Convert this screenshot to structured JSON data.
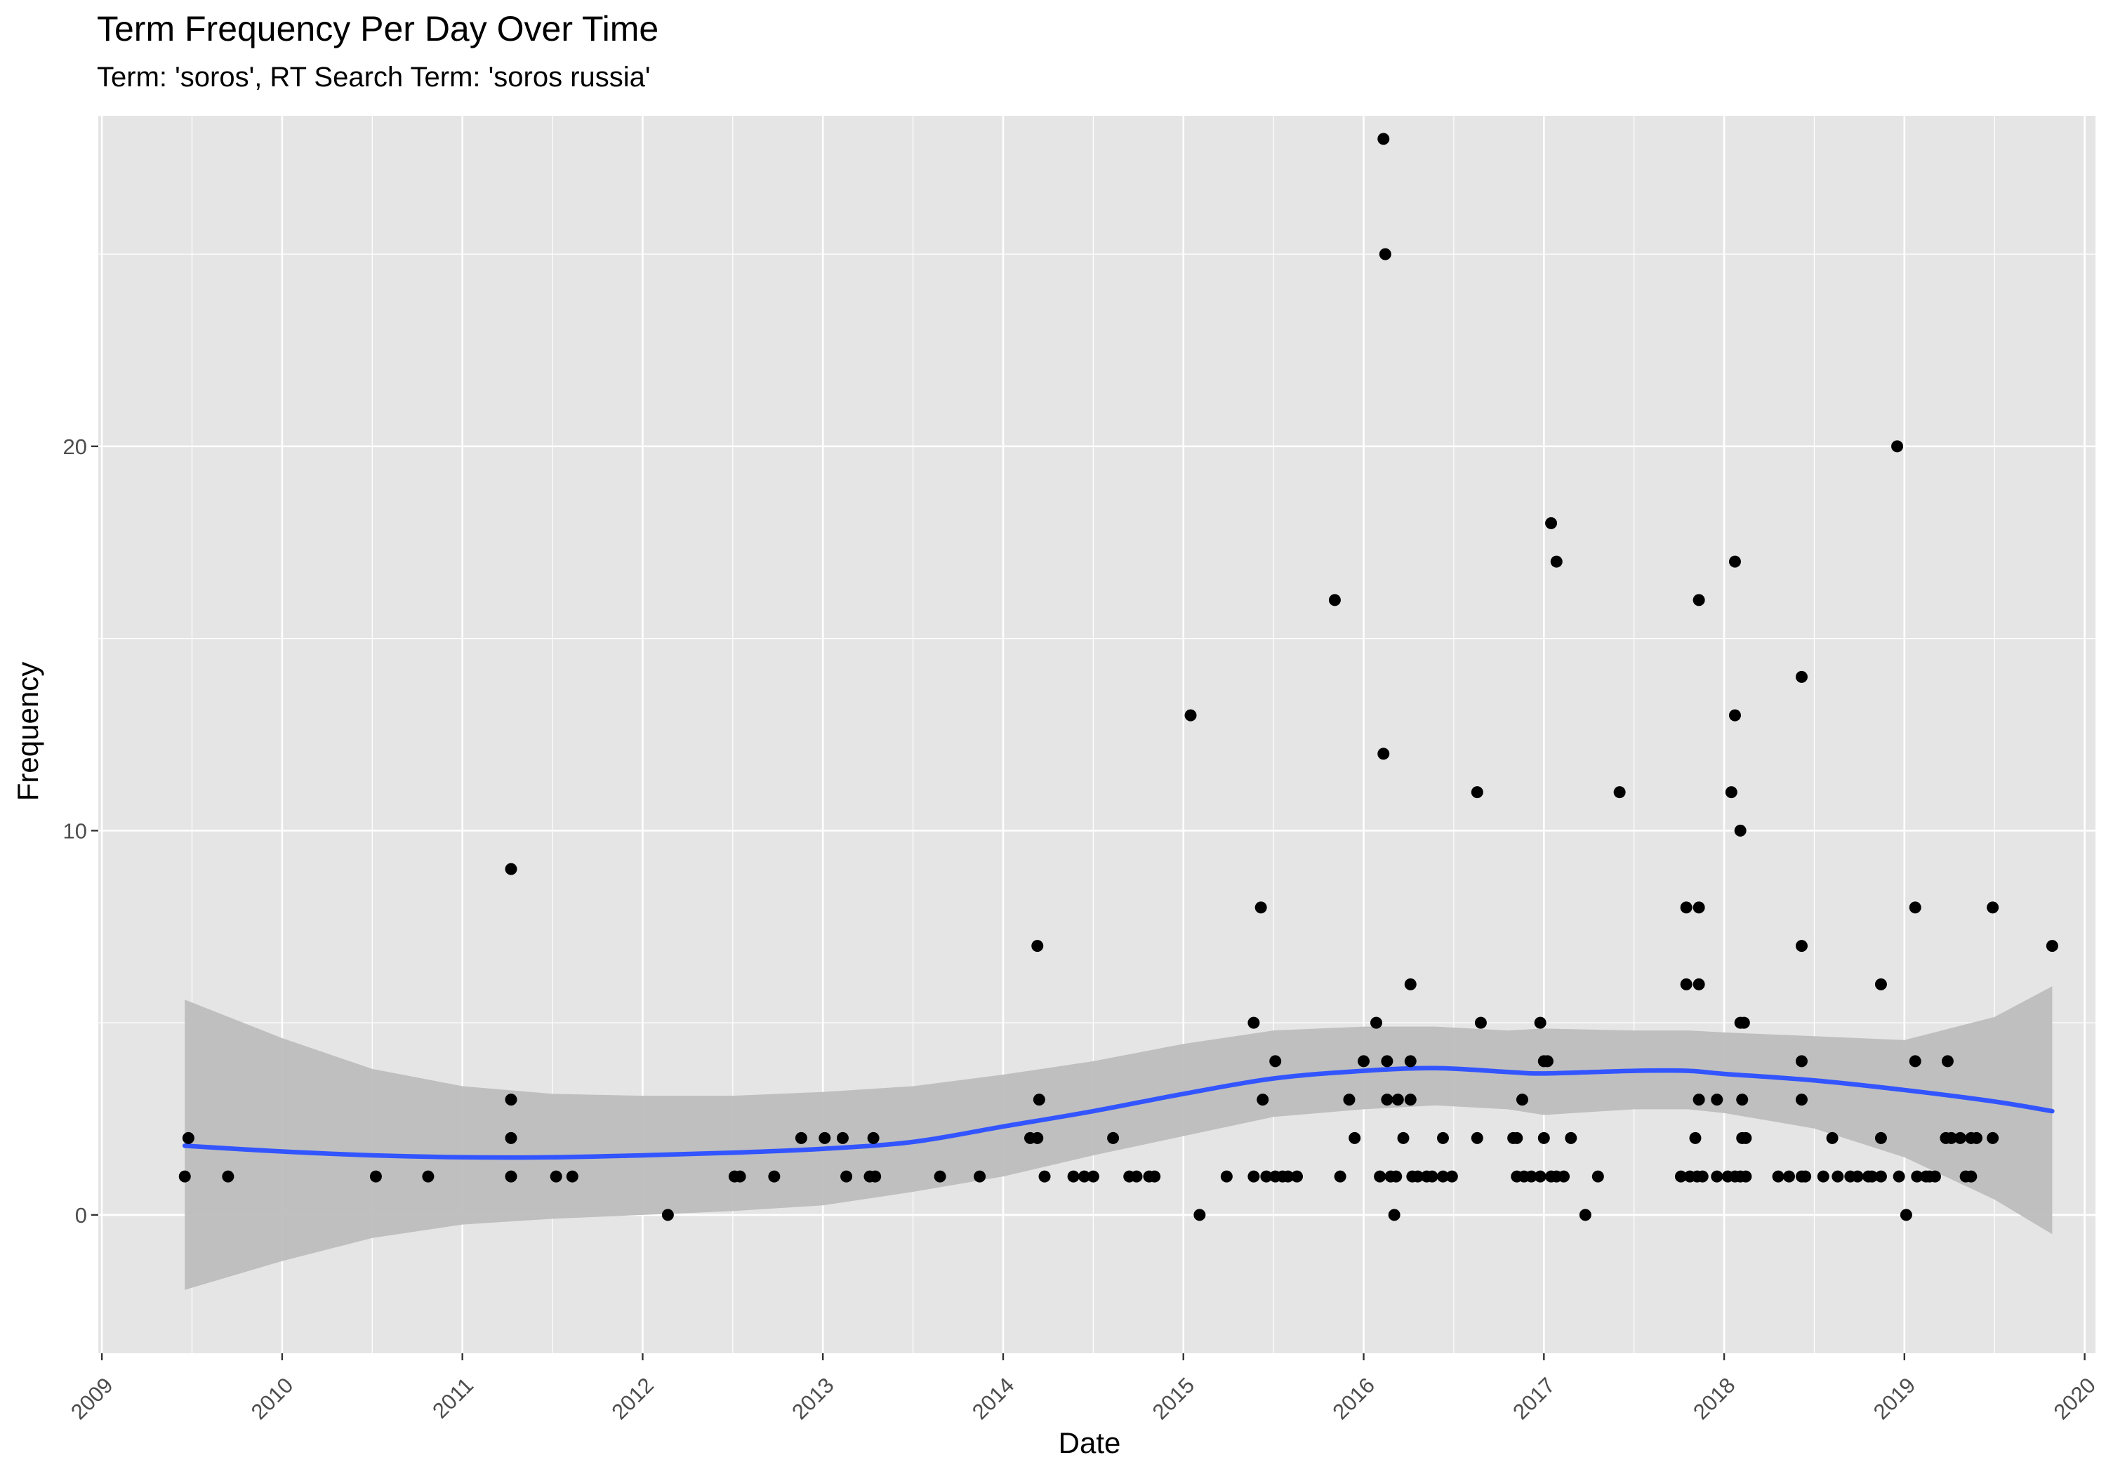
{
  "chart_data": {
    "type": "scatter",
    "title": "Term Frequency Per Day Over Time",
    "subtitle": "Term: 'soros', RT Search Term: 'soros russia'",
    "xlabel": "Date",
    "ylabel": "Frequency",
    "x_ticks": [
      "2009",
      "2010",
      "2011",
      "2012",
      "2013",
      "2014",
      "2015",
      "2016",
      "2017",
      "2018",
      "2019",
      "2020"
    ],
    "y_ticks": [
      "0",
      "10",
      "20"
    ],
    "xlim": [
      2008.98,
      2020.06
    ],
    "ylim": [
      -3.6,
      28.6
    ],
    "grid": true,
    "background_color": "#e5e5e5",
    "grid_color": "#ffffff",
    "point_color": "#000000",
    "smooth_color": "#3355ff",
    "ribbon_color": "#bdbdbd",
    "points": [
      {
        "x": 2009.46,
        "y": 1
      },
      {
        "x": 2009.48,
        "y": 2
      },
      {
        "x": 2009.7,
        "y": 1
      },
      {
        "x": 2010.52,
        "y": 1
      },
      {
        "x": 2010.81,
        "y": 1
      },
      {
        "x": 2011.27,
        "y": 9
      },
      {
        "x": 2011.27,
        "y": 3
      },
      {
        "x": 2011.27,
        "y": 2
      },
      {
        "x": 2011.27,
        "y": 1
      },
      {
        "x": 2011.52,
        "y": 1
      },
      {
        "x": 2011.61,
        "y": 1
      },
      {
        "x": 2012.14,
        "y": 0
      },
      {
        "x": 2012.51,
        "y": 1
      },
      {
        "x": 2012.54,
        "y": 1
      },
      {
        "x": 2012.73,
        "y": 1
      },
      {
        "x": 2012.88,
        "y": 2
      },
      {
        "x": 2013.01,
        "y": 2
      },
      {
        "x": 2013.11,
        "y": 2
      },
      {
        "x": 2013.13,
        "y": 1
      },
      {
        "x": 2013.26,
        "y": 1
      },
      {
        "x": 2013.28,
        "y": 2
      },
      {
        "x": 2013.29,
        "y": 1
      },
      {
        "x": 2013.65,
        "y": 1
      },
      {
        "x": 2013.87,
        "y": 1
      },
      {
        "x": 2014.15,
        "y": 2
      },
      {
        "x": 2014.19,
        "y": 2
      },
      {
        "x": 2014.19,
        "y": 7
      },
      {
        "x": 2014.2,
        "y": 3
      },
      {
        "x": 2014.23,
        "y": 1
      },
      {
        "x": 2014.39,
        "y": 1
      },
      {
        "x": 2014.45,
        "y": 1
      },
      {
        "x": 2014.5,
        "y": 1
      },
      {
        "x": 2014.61,
        "y": 2
      },
      {
        "x": 2014.7,
        "y": 1
      },
      {
        "x": 2014.74,
        "y": 1
      },
      {
        "x": 2014.81,
        "y": 1
      },
      {
        "x": 2014.84,
        "y": 1
      },
      {
        "x": 2015.04,
        "y": 13
      },
      {
        "x": 2015.09,
        "y": 0
      },
      {
        "x": 2015.24,
        "y": 1
      },
      {
        "x": 2015.39,
        "y": 5
      },
      {
        "x": 2015.39,
        "y": 1
      },
      {
        "x": 2015.43,
        "y": 8
      },
      {
        "x": 2015.44,
        "y": 3
      },
      {
        "x": 2015.46,
        "y": 1
      },
      {
        "x": 2015.51,
        "y": 4
      },
      {
        "x": 2015.51,
        "y": 1
      },
      {
        "x": 2015.55,
        "y": 1
      },
      {
        "x": 2015.58,
        "y": 1
      },
      {
        "x": 2015.63,
        "y": 1
      },
      {
        "x": 2015.84,
        "y": 16
      },
      {
        "x": 2015.87,
        "y": 1
      },
      {
        "x": 2015.92,
        "y": 3
      },
      {
        "x": 2015.95,
        "y": 2
      },
      {
        "x": 2016.0,
        "y": 4
      },
      {
        "x": 2016.07,
        "y": 5
      },
      {
        "x": 2016.09,
        "y": 1
      },
      {
        "x": 2016.11,
        "y": 12
      },
      {
        "x": 2016.11,
        "y": 28
      },
      {
        "x": 2016.12,
        "y": 25
      },
      {
        "x": 2016.13,
        "y": 4
      },
      {
        "x": 2016.13,
        "y": 3
      },
      {
        "x": 2016.15,
        "y": 1
      },
      {
        "x": 2016.17,
        "y": 0
      },
      {
        "x": 2016.18,
        "y": 1
      },
      {
        "x": 2016.19,
        "y": 3
      },
      {
        "x": 2016.22,
        "y": 2
      },
      {
        "x": 2016.26,
        "y": 6
      },
      {
        "x": 2016.26,
        "y": 4
      },
      {
        "x": 2016.26,
        "y": 3
      },
      {
        "x": 2016.27,
        "y": 1
      },
      {
        "x": 2016.3,
        "y": 1
      },
      {
        "x": 2016.35,
        "y": 1
      },
      {
        "x": 2016.38,
        "y": 1
      },
      {
        "x": 2016.44,
        "y": 2
      },
      {
        "x": 2016.44,
        "y": 1
      },
      {
        "x": 2016.49,
        "y": 1
      },
      {
        "x": 2016.63,
        "y": 11
      },
      {
        "x": 2016.63,
        "y": 2
      },
      {
        "x": 2016.65,
        "y": 5
      },
      {
        "x": 2016.83,
        "y": 2
      },
      {
        "x": 2016.85,
        "y": 2
      },
      {
        "x": 2016.85,
        "y": 1
      },
      {
        "x": 2016.88,
        "y": 3
      },
      {
        "x": 2016.89,
        "y": 1
      },
      {
        "x": 2016.93,
        "y": 1
      },
      {
        "x": 2016.98,
        "y": 5
      },
      {
        "x": 2016.98,
        "y": 1
      },
      {
        "x": 2017.0,
        "y": 4
      },
      {
        "x": 2017.0,
        "y": 2
      },
      {
        "x": 2017.02,
        "y": 4
      },
      {
        "x": 2017.04,
        "y": 18
      },
      {
        "x": 2017.04,
        "y": 1
      },
      {
        "x": 2017.07,
        "y": 17
      },
      {
        "x": 2017.07,
        "y": 1
      },
      {
        "x": 2017.11,
        "y": 1
      },
      {
        "x": 2017.15,
        "y": 2
      },
      {
        "x": 2017.23,
        "y": 0
      },
      {
        "x": 2017.3,
        "y": 1
      },
      {
        "x": 2017.42,
        "y": 11
      },
      {
        "x": 2017.76,
        "y": 1
      },
      {
        "x": 2017.79,
        "y": 8
      },
      {
        "x": 2017.79,
        "y": 6
      },
      {
        "x": 2017.81,
        "y": 1
      },
      {
        "x": 2017.84,
        "y": 2
      },
      {
        "x": 2017.85,
        "y": 1
      },
      {
        "x": 2017.86,
        "y": 8
      },
      {
        "x": 2017.86,
        "y": 6
      },
      {
        "x": 2017.86,
        "y": 16
      },
      {
        "x": 2017.86,
        "y": 3
      },
      {
        "x": 2017.88,
        "y": 1
      },
      {
        "x": 2017.96,
        "y": 3
      },
      {
        "x": 2017.96,
        "y": 1
      },
      {
        "x": 2018.02,
        "y": 1
      },
      {
        "x": 2018.04,
        "y": 11
      },
      {
        "x": 2018.06,
        "y": 17
      },
      {
        "x": 2018.06,
        "y": 13
      },
      {
        "x": 2018.06,
        "y": 1
      },
      {
        "x": 2018.09,
        "y": 10
      },
      {
        "x": 2018.09,
        "y": 5
      },
      {
        "x": 2018.09,
        "y": 1
      },
      {
        "x": 2018.1,
        "y": 3
      },
      {
        "x": 2018.1,
        "y": 2
      },
      {
        "x": 2018.11,
        "y": 5
      },
      {
        "x": 2018.12,
        "y": 2
      },
      {
        "x": 2018.12,
        "y": 1
      },
      {
        "x": 2018.3,
        "y": 1
      },
      {
        "x": 2018.36,
        "y": 1
      },
      {
        "x": 2018.43,
        "y": 14
      },
      {
        "x": 2018.43,
        "y": 7
      },
      {
        "x": 2018.43,
        "y": 4
      },
      {
        "x": 2018.43,
        "y": 3
      },
      {
        "x": 2018.43,
        "y": 1
      },
      {
        "x": 2018.45,
        "y": 1
      },
      {
        "x": 2018.55,
        "y": 1
      },
      {
        "x": 2018.6,
        "y": 2
      },
      {
        "x": 2018.63,
        "y": 1
      },
      {
        "x": 2018.7,
        "y": 1
      },
      {
        "x": 2018.74,
        "y": 1
      },
      {
        "x": 2018.8,
        "y": 1
      },
      {
        "x": 2018.82,
        "y": 1
      },
      {
        "x": 2018.87,
        "y": 6
      },
      {
        "x": 2018.87,
        "y": 2
      },
      {
        "x": 2018.87,
        "y": 1
      },
      {
        "x": 2018.96,
        "y": 20
      },
      {
        "x": 2018.97,
        "y": 1
      },
      {
        "x": 2019.01,
        "y": 0
      },
      {
        "x": 2019.06,
        "y": 8
      },
      {
        "x": 2019.06,
        "y": 4
      },
      {
        "x": 2019.07,
        "y": 1
      },
      {
        "x": 2019.12,
        "y": 1
      },
      {
        "x": 2019.14,
        "y": 1
      },
      {
        "x": 2019.17,
        "y": 1
      },
      {
        "x": 2019.23,
        "y": 2
      },
      {
        "x": 2019.24,
        "y": 4
      },
      {
        "x": 2019.26,
        "y": 2
      },
      {
        "x": 2019.31,
        "y": 2
      },
      {
        "x": 2019.34,
        "y": 1
      },
      {
        "x": 2019.37,
        "y": 2
      },
      {
        "x": 2019.37,
        "y": 1
      },
      {
        "x": 2019.4,
        "y": 2
      },
      {
        "x": 2019.49,
        "y": 8
      },
      {
        "x": 2019.49,
        "y": 2
      },
      {
        "x": 2019.82,
        "y": 7
      }
    ],
    "smooth": {
      "x": [
        2009.46,
        2010.0,
        2010.5,
        2011.0,
        2011.5,
        2012.0,
        2012.5,
        2013.0,
        2013.5,
        2014.0,
        2014.5,
        2015.0,
        2015.5,
        2016.0,
        2016.4,
        2016.8,
        2017.0,
        2017.5,
        2017.8,
        2018.0,
        2018.5,
        2019.0,
        2019.5,
        2019.82
      ],
      "y": [
        1.8,
        1.65,
        1.55,
        1.5,
        1.5,
        1.55,
        1.62,
        1.72,
        1.9,
        2.3,
        2.7,
        3.15,
        3.55,
        3.75,
        3.82,
        3.72,
        3.68,
        3.75,
        3.75,
        3.67,
        3.5,
        3.25,
        2.95,
        2.7
      ],
      "lower": [
        -1.95,
        -1.2,
        -0.6,
        -0.25,
        -0.1,
        0.0,
        0.1,
        0.25,
        0.6,
        1.0,
        1.55,
        2.05,
        2.55,
        2.75,
        2.85,
        2.75,
        2.6,
        2.75,
        2.75,
        2.65,
        2.25,
        1.5,
        0.4,
        -0.5
      ],
      "upper": [
        5.6,
        4.6,
        3.8,
        3.35,
        3.15,
        3.1,
        3.1,
        3.2,
        3.35,
        3.65,
        4.0,
        4.45,
        4.8,
        4.9,
        4.9,
        4.8,
        4.85,
        4.8,
        4.8,
        4.75,
        4.65,
        4.55,
        5.15,
        5.95
      ]
    }
  }
}
